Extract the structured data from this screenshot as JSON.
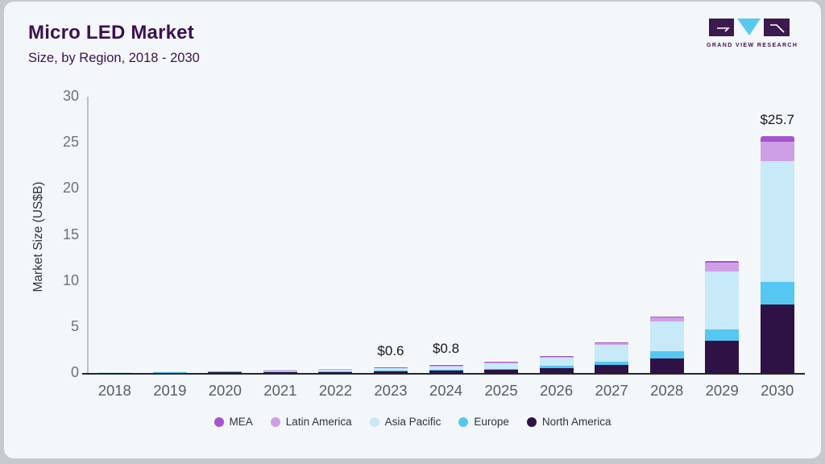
{
  "header": {
    "title": "Micro LED Market",
    "subtitle": "Size, by Region, 2018 - 2030"
  },
  "logo": {
    "text": "GRAND VIEW RESEARCH"
  },
  "colors": {
    "card_bg": "#f4f7fa",
    "frame_bg": "#c6cacd",
    "title_text": "#3c1053",
    "x_axis_line": "#23272b",
    "y_axis_line": "#bcc2c7",
    "tick_text": "#6a737b",
    "annotation_text": "#16181d",
    "logo_dark": "#3b1a4e",
    "logo_cyan": "#57c8ef"
  },
  "chart_data": {
    "type": "bar",
    "stacked": true,
    "title": "Micro LED Market",
    "subtitle": "Size, by Region, 2018 - 2030",
    "ylabel": "Market Size (US$B)",
    "xlabel": "",
    "ylim": [
      0,
      30
    ],
    "yticks": [
      0,
      5,
      10,
      15,
      20,
      25,
      30
    ],
    "grid": false,
    "legend_position": "bottom",
    "categories": [
      "2018",
      "2019",
      "2020",
      "2021",
      "2022",
      "2023",
      "2024",
      "2025",
      "2026",
      "2027",
      "2028",
      "2029",
      "2030"
    ],
    "series": [
      {
        "name": "North America",
        "color": "#2e1245",
        "values": [
          0.02,
          0.03,
          0.06,
          0.09,
          0.12,
          0.18,
          0.24,
          0.33,
          0.55,
          0.9,
          1.6,
          3.5,
          7.4
        ]
      },
      {
        "name": "Europe",
        "color": "#55c7f0",
        "values": [
          0.01,
          0.02,
          0.03,
          0.04,
          0.06,
          0.08,
          0.11,
          0.15,
          0.2,
          0.35,
          0.8,
          1.2,
          2.5
        ]
      },
      {
        "name": "Asia Pacific",
        "color": "#c7e9f8",
        "values": [
          0.03,
          0.06,
          0.09,
          0.14,
          0.19,
          0.28,
          0.38,
          0.54,
          0.9,
          1.8,
          3.2,
          6.3,
          13.1
        ]
      },
      {
        "name": "Latin America",
        "color": "#cf9fe5",
        "values": [
          0.005,
          0.01,
          0.01,
          0.02,
          0.02,
          0.04,
          0.05,
          0.05,
          0.1,
          0.2,
          0.45,
          1.0,
          2.1
        ]
      },
      {
        "name": "MEA",
        "color": "#a654ce",
        "values": [
          0.005,
          0.01,
          0.01,
          0.01,
          0.01,
          0.02,
          0.02,
          0.03,
          0.05,
          0.05,
          0.05,
          0.2,
          0.6
        ]
      }
    ],
    "totals": [
      0.07,
      0.12,
      0.2,
      0.3,
      0.4,
      0.6,
      0.8,
      1.1,
      1.8,
      3.3,
      6.1,
      12.2,
      25.7
    ],
    "annotations": [
      {
        "category": "2023",
        "label": "$0.6"
      },
      {
        "category": "2024",
        "label": "$0.8"
      },
      {
        "category": "2030",
        "label": "$25.7"
      }
    ],
    "legend_order": [
      "MEA",
      "Latin America",
      "Asia Pacific",
      "Europe",
      "North America"
    ]
  }
}
